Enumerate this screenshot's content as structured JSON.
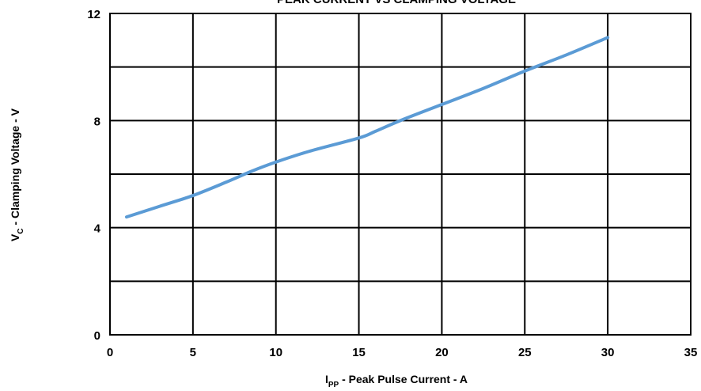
{
  "chart_data": {
    "type": "line",
    "title": "PEAK CURRENT VS CLAMPING VOLTAGE",
    "xlabel": {
      "main": "I",
      "sub": "PP",
      "rest": " - Peak Pulse Current - A"
    },
    "ylabel": {
      "main": "V",
      "sub": "C",
      "rest": " - Clamping Voltage - V"
    },
    "xlim": [
      0,
      35
    ],
    "ylim": [
      0,
      12
    ],
    "x_ticks": [
      0,
      5,
      10,
      15,
      20,
      25,
      30,
      35
    ],
    "y_ticks": [
      0,
      4,
      8,
      12
    ],
    "grid": true,
    "series_color": "#5b9bd5",
    "series": [
      {
        "x": [
          1,
          3,
          5,
          7,
          8.5,
          10,
          12,
          15,
          16,
          17.5,
          20,
          22.5,
          25,
          27.5,
          30
        ],
        "values": [
          4.4,
          4.8,
          5.2,
          5.7,
          6.1,
          6.45,
          6.85,
          7.35,
          7.6,
          8.0,
          8.6,
          9.2,
          9.85,
          10.45,
          11.1
        ]
      }
    ]
  }
}
